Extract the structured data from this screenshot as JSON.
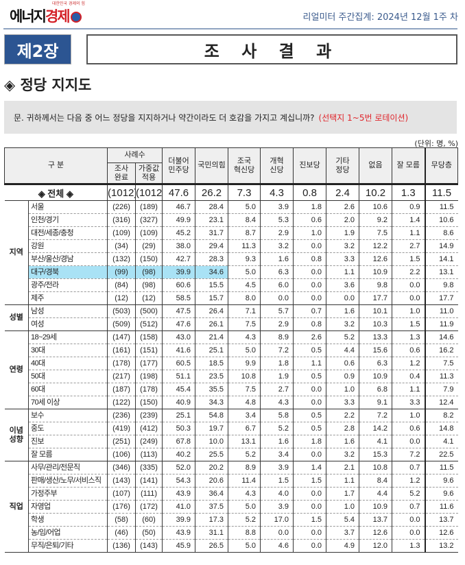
{
  "header": {
    "logo_text_a": "에너지",
    "logo_text_b": "경제",
    "logo_tagline": "대한민국 경제의 힘",
    "report_label": "리얼미터 주간집계: 2024년 12월  1주 차"
  },
  "chapter": {
    "label": "제2장",
    "title": "조 사 결 과"
  },
  "section_title": "◈ 정당 지지도",
  "question": {
    "prefix": "문. 귀하께서는 다음 중 어느 정당을 지지하거나 약간이라도 더 호감을 가지고 계십니까?",
    "note": "(선택지 1~5번 로테이션)"
  },
  "unit": "(단위: 명, %)",
  "table": {
    "headers": {
      "category": "구  분",
      "sample": "사례수",
      "completed": "조사\n완료",
      "weighted": "가중값\n적용",
      "parties": [
        "더불어\n민주당",
        "국민의힘",
        "조국\n혁신당",
        "개혁\n신당",
        "진보당",
        "기타\n정당",
        "없음",
        "잘 모름",
        "무당층"
      ]
    },
    "total": {
      "label": "◈ 전체 ◈",
      "values": [
        "(1012)",
        "(1012)",
        "47.6",
        "26.2",
        "7.3",
        "4.3",
        "0.8",
        "2.4",
        "10.2",
        "1.3",
        "11.5"
      ]
    },
    "highlight_color": "#a9e2f5",
    "groups": [
      {
        "name": "지역",
        "rows": [
          [
            "서울",
            "(226)",
            "(189)",
            "46.7",
            "28.4",
            "5.0",
            "3.9",
            "1.8",
            "2.6",
            "10.6",
            "0.9",
            "11.5"
          ],
          [
            "인천/경기",
            "(316)",
            "(327)",
            "49.9",
            "23.1",
            "8.4",
            "5.3",
            "0.6",
            "2.0",
            "9.2",
            "1.4",
            "10.6"
          ],
          [
            "대전/세종/충청",
            "(109)",
            "(109)",
            "45.2",
            "31.7",
            "8.7",
            "2.9",
            "1.0",
            "1.9",
            "7.5",
            "1.1",
            "8.6"
          ],
          [
            "강원",
            "(34)",
            "(29)",
            "38.0",
            "29.4",
            "11.3",
            "3.2",
            "0.0",
            "3.2",
            "12.2",
            "2.7",
            "14.9"
          ],
          [
            "부산/울산/경남",
            "(132)",
            "(150)",
            "42.7",
            "28.3",
            "9.3",
            "1.6",
            "0.8",
            "3.3",
            "12.6",
            "1.5",
            "14.1"
          ],
          [
            "대구/경북",
            "(99)",
            "(98)",
            "39.9",
            "34.6",
            "5.0",
            "6.3",
            "0.0",
            "1.1",
            "10.9",
            "2.2",
            "13.1"
          ],
          [
            "광주/전라",
            "(84)",
            "(98)",
            "60.6",
            "15.5",
            "4.5",
            "6.0",
            "0.0",
            "3.6",
            "9.8",
            "0.0",
            "9.8"
          ],
          [
            "제주",
            "(12)",
            "(12)",
            "58.5",
            "15.7",
            "8.0",
            "0.0",
            "0.0",
            "0.0",
            "17.7",
            "0.0",
            "17.7"
          ]
        ]
      },
      {
        "name": "성별",
        "rows": [
          [
            "남성",
            "(503)",
            "(500)",
            "47.5",
            "26.4",
            "7.1",
            "5.7",
            "0.7",
            "1.6",
            "10.1",
            "1.0",
            "11.0"
          ],
          [
            "여성",
            "(509)",
            "(512)",
            "47.6",
            "26.1",
            "7.5",
            "2.9",
            "0.8",
            "3.2",
            "10.3",
            "1.5",
            "11.9"
          ]
        ]
      },
      {
        "name": "연령",
        "rows": [
          [
            "18~29세",
            "(147)",
            "(158)",
            "43.0",
            "21.4",
            "4.3",
            "8.9",
            "2.6",
            "5.2",
            "13.3",
            "1.3",
            "14.6"
          ],
          [
            "30대",
            "(161)",
            "(151)",
            "41.6",
            "25.1",
            "5.0",
            "7.2",
            "0.5",
            "4.4",
            "15.6",
            "0.6",
            "16.2"
          ],
          [
            "40대",
            "(178)",
            "(177)",
            "60.5",
            "18.5",
            "9.9",
            "1.8",
            "1.1",
            "0.6",
            "6.3",
            "1.2",
            "7.5"
          ],
          [
            "50대",
            "(217)",
            "(198)",
            "51.1",
            "23.5",
            "10.8",
            "1.9",
            "0.5",
            "0.9",
            "10.9",
            "0.4",
            "11.3"
          ],
          [
            "60대",
            "(187)",
            "(178)",
            "45.4",
            "35.5",
            "7.5",
            "2.7",
            "0.0",
            "1.0",
            "6.8",
            "1.1",
            "7.9"
          ],
          [
            "70세 이상",
            "(122)",
            "(150)",
            "40.9",
            "34.3",
            "4.8",
            "4.3",
            "0.0",
            "3.3",
            "9.1",
            "3.3",
            "12.4"
          ]
        ]
      },
      {
        "name": "이념\n성향",
        "rows": [
          [
            "보수",
            "(236)",
            "(239)",
            "25.1",
            "54.8",
            "3.4",
            "5.8",
            "0.5",
            "2.2",
            "7.2",
            "1.0",
            "8.2"
          ],
          [
            "중도",
            "(419)",
            "(412)",
            "50.3",
            "19.7",
            "6.7",
            "5.2",
            "0.5",
            "2.8",
            "14.2",
            "0.6",
            "14.8"
          ],
          [
            "진보",
            "(251)",
            "(249)",
            "67.8",
            "10.0",
            "13.1",
            "1.6",
            "1.8",
            "1.6",
            "4.1",
            "0.0",
            "4.1"
          ],
          [
            "잘 모름",
            "(106)",
            "(113)",
            "40.2",
            "25.5",
            "5.2",
            "3.4",
            "0.0",
            "3.2",
            "15.3",
            "7.2",
            "22.5"
          ]
        ]
      },
      {
        "name": "직업",
        "rows": [
          [
            "사무/관리/전문직",
            "(346)",
            "(335)",
            "52.0",
            "20.2",
            "8.9",
            "3.9",
            "1.4",
            "2.1",
            "10.8",
            "0.7",
            "11.5"
          ],
          [
            "판매/생산/노무/서비스직",
            "(143)",
            "(141)",
            "54.3",
            "20.6",
            "11.4",
            "1.5",
            "1.5",
            "1.1",
            "8.4",
            "1.2",
            "9.6"
          ],
          [
            "가정주부",
            "(107)",
            "(111)",
            "43.9",
            "36.4",
            "4.3",
            "4.0",
            "0.0",
            "1.7",
            "4.4",
            "5.2",
            "9.6"
          ],
          [
            "자영업",
            "(176)",
            "(172)",
            "41.0",
            "37.5",
            "5.0",
            "3.9",
            "0.0",
            "1.0",
            "10.9",
            "0.7",
            "11.6"
          ],
          [
            "학생",
            "(58)",
            "(60)",
            "39.9",
            "17.3",
            "5.2",
            "17.0",
            "1.5",
            "5.4",
            "13.7",
            "0.0",
            "13.7"
          ],
          [
            "농/임/어업",
            "(46)",
            "(50)",
            "43.9",
            "31.1",
            "8.8",
            "0.0",
            "0.0",
            "3.7",
            "12.6",
            "0.0",
            "12.6"
          ],
          [
            "무직/은퇴/기타",
            "(136)",
            "(143)",
            "45.9",
            "26.5",
            "5.0",
            "4.6",
            "0.0",
            "4.9",
            "12.0",
            "1.3",
            "13.2"
          ]
        ]
      }
    ]
  }
}
